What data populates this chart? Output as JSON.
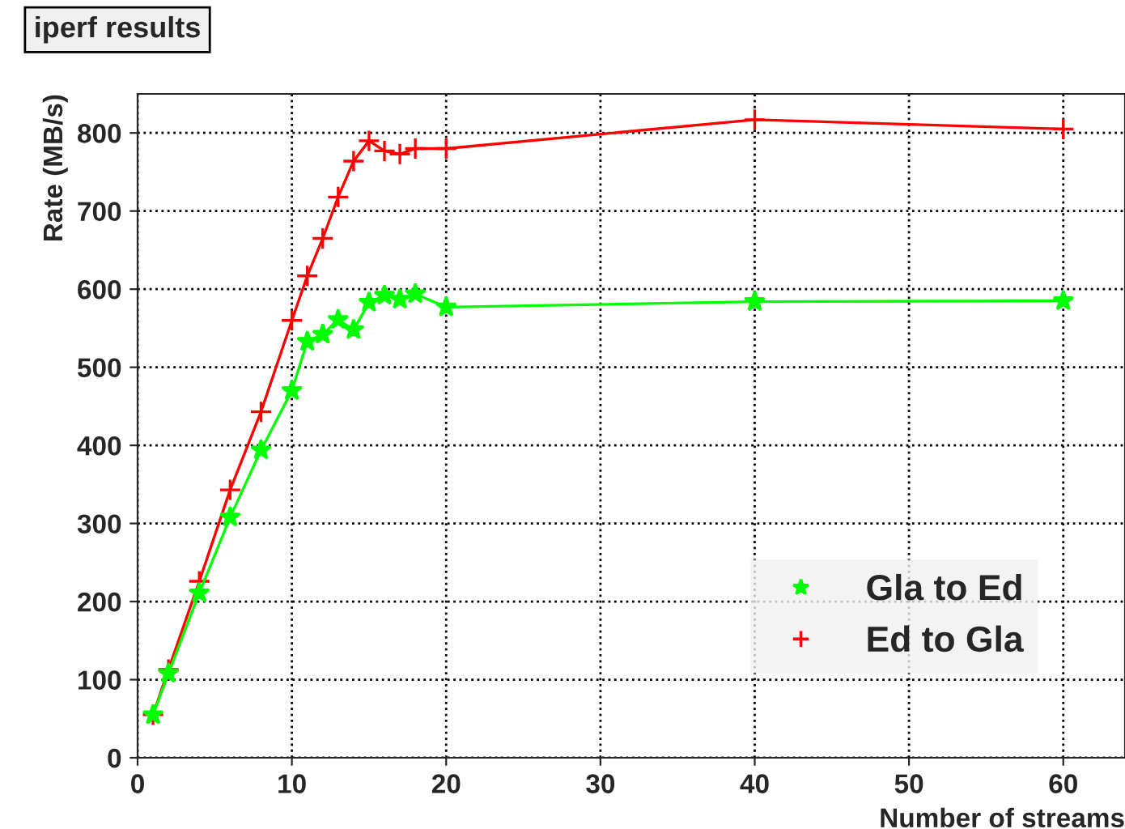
{
  "chart_data": {
    "type": "line",
    "title": "iperf results",
    "xlabel": "Number of streams",
    "ylabel": "Rate (MB/s)",
    "x": [
      1,
      2,
      4,
      6,
      8,
      10,
      11,
      12,
      13,
      14,
      15,
      16,
      17,
      18,
      20,
      40,
      60
    ],
    "series": [
      {
        "name": "Gla to Ed",
        "color": "#00ff00",
        "marker": "star",
        "values": [
          55,
          108,
          211,
          308,
          394,
          470,
          533,
          542,
          561,
          548,
          583,
          592,
          587,
          594,
          577,
          584,
          585
        ]
      },
      {
        "name": "Ed to Gla",
        "color": "#ff0000",
        "marker": "cross",
        "values": [
          55,
          113,
          226,
          343,
          443,
          560,
          617,
          665,
          718,
          764,
          790,
          777,
          773,
          780,
          780,
          817,
          805
        ]
      }
    ],
    "xlim": [
      0,
      64
    ],
    "xticks": [
      0,
      10,
      20,
      30,
      40,
      50,
      60
    ],
    "ylim": [
      0,
      850
    ],
    "yticks": [
      0,
      100,
      200,
      300,
      400,
      500,
      600,
      700,
      800
    ],
    "grid": true,
    "legend": "bottom right",
    "line_style": "solid"
  }
}
